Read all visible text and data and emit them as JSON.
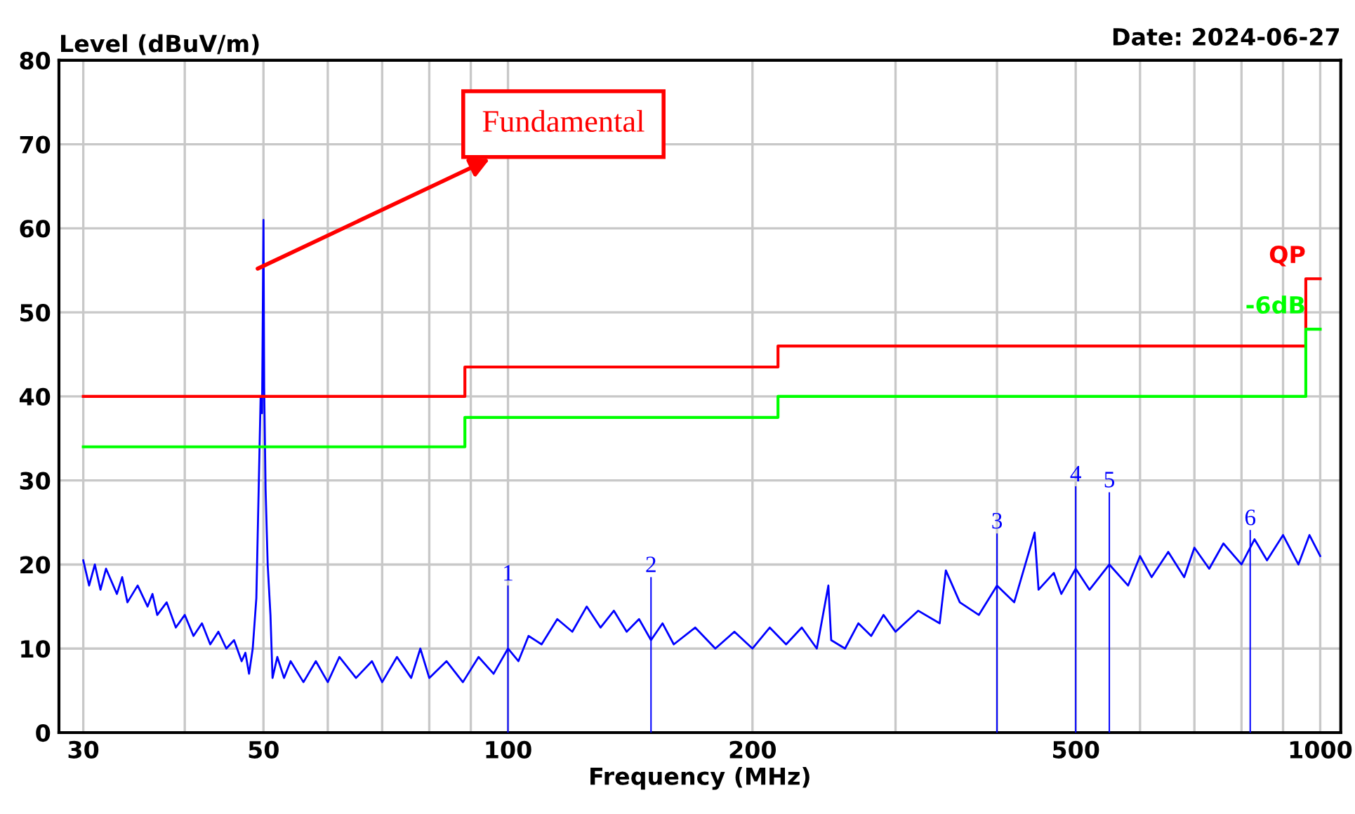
{
  "chart_data": {
    "type": "line",
    "xlabel": "Frequency (MHz)",
    "ylabel": "Level (dBuV/m)",
    "annotations": [
      "Date: 2024-06-27",
      "Fundamental",
      {
        "text": "1",
        "x": 100,
        "y": 17.5
      },
      {
        "text": "2",
        "x": 150,
        "y": 18.5
      },
      {
        "text": "3",
        "x": 400,
        "y": 23.7
      },
      {
        "text": "4",
        "x": 500,
        "y": 29.3
      },
      {
        "text": "5",
        "x": 550,
        "y": 28.6
      },
      {
        "text": "6",
        "x": 820,
        "y": 24.1
      }
    ],
    "log": "x",
    "grid": true,
    "legend": false,
    "xlim": [
      28,
      1060
    ],
    "ylim": [
      0,
      80
    ],
    "xticks": [
      30,
      {
        "value": 40,
        "label": null
      },
      50,
      {
        "value": 60,
        "label": null
      },
      {
        "value": 70,
        "label": null
      },
      {
        "value": 80,
        "label": null
      },
      {
        "value": 90,
        "label": null
      },
      100,
      200,
      {
        "value": 300,
        "label": null
      },
      {
        "value": 400,
        "label": null
      },
      500,
      {
        "value": 600,
        "label": null
      },
      {
        "value": 700,
        "label": null
      },
      {
        "value": 800,
        "label": null
      },
      {
        "value": 900,
        "label": null
      },
      1000
    ],
    "yticks": [
      0,
      10,
      20,
      30,
      40,
      50,
      60,
      70,
      80
    ],
    "series": [
      {
        "color": "#0000ff",
        "x": [
          30,
          30.5,
          31,
          31.5,
          32,
          33,
          33.5,
          34,
          35,
          36,
          36.5,
          37,
          38,
          39,
          40,
          41,
          42,
          43,
          44,
          45,
          46,
          47,
          47.5,
          48,
          48.5,
          49,
          49.3,
          49.6,
          49.8,
          50,
          50.1,
          50.3,
          50.6,
          51,
          51.3,
          52,
          53,
          54,
          56,
          58,
          60,
          62,
          65,
          68,
          70,
          73,
          76,
          78,
          80,
          84,
          88,
          92,
          96,
          100,
          103,
          106,
          110,
          115,
          120,
          125,
          130,
          135,
          140,
          145,
          150,
          155,
          160,
          170,
          180,
          190,
          200,
          210,
          220,
          230,
          240,
          248,
          250,
          260,
          270,
          280,
          290,
          300,
          320,
          340,
          346,
          360,
          380,
          400,
          420,
          445,
          450,
          470,
          480,
          500,
          520,
          550,
          580,
          600,
          620,
          650,
          680,
          700,
          730,
          760,
          800,
          830,
          860,
          900,
          940,
          970,
          1000
        ],
        "values": [
          20.5,
          17.5,
          20,
          17,
          19.5,
          16.5,
          18.5,
          15.5,
          17.5,
          15,
          16.5,
          14,
          15.5,
          12.5,
          14,
          11.5,
          13,
          10.5,
          12,
          10,
          11,
          8.5,
          9.5,
          7,
          10,
          16,
          28,
          40,
          38,
          61,
          41,
          29,
          20,
          14,
          6.5,
          9,
          6.5,
          8.5,
          6,
          8.5,
          6,
          9,
          6.5,
          8.5,
          6,
          9,
          6.5,
          10,
          6.5,
          8.5,
          6,
          9,
          7,
          10,
          8.5,
          11.5,
          10.5,
          13.5,
          12,
          15,
          12.5,
          14.5,
          12,
          13.5,
          11,
          13,
          10.5,
          12.5,
          10,
          12,
          10,
          12.5,
          10.5,
          12.5,
          10,
          17.5,
          11,
          10,
          13,
          11.5,
          14,
          12,
          14.5,
          13,
          19.3,
          15.5,
          14,
          17.5,
          15.5,
          23.8,
          17,
          19,
          16.5,
          19.5,
          17,
          20,
          17.5,
          21,
          18.5,
          21.5,
          18.5,
          22,
          19.5,
          22.5,
          20,
          23,
          20.5,
          23.5,
          20,
          23.5,
          21
        ]
      },
      {
        "type": "step",
        "name": "QP",
        "color": "#ff0000",
        "x": [
          30,
          88.5,
          215,
          960,
          1000
        ],
        "values": [
          40,
          43.5,
          46,
          54,
          54
        ]
      },
      {
        "type": "step",
        "name": "-6dB",
        "color": "#00ff00",
        "x": [
          30,
          88.5,
          215,
          960,
          1000
        ],
        "values": [
          34,
          37.5,
          40,
          48,
          48
        ]
      },
      {
        "type": "bar",
        "color": "#0000ff",
        "x": [
          100,
          150,
          400,
          500,
          550,
          820
        ],
        "values": [
          17.5,
          18.5,
          23.7,
          29.3,
          28.6,
          24.1
        ]
      }
    ]
  }
}
